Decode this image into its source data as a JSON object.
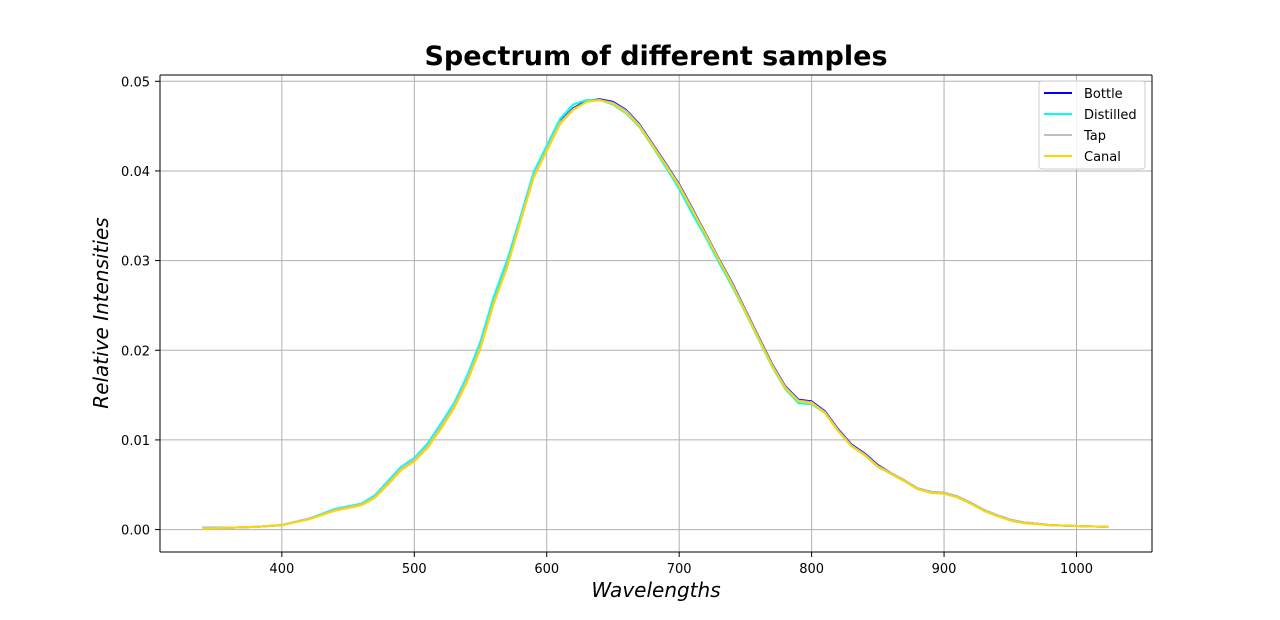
{
  "chart_data": {
    "type": "line",
    "title": "Spectrum of different samples",
    "xlabel": "Wavelengths",
    "ylabel": "Relative Intensities",
    "xlim": [
      308,
      1057
    ],
    "ylim": [
      -0.0025,
      0.0507
    ],
    "xticks": [
      400,
      500,
      600,
      700,
      800,
      900,
      1000
    ],
    "yticks": [
      0.0,
      0.01,
      0.02,
      0.03,
      0.04,
      0.05
    ],
    "ytick_labels": [
      "0.00",
      "0.01",
      "0.02",
      "0.03",
      "0.04",
      "0.05"
    ],
    "grid": true,
    "legend_position": "top-right",
    "x": [
      340,
      360,
      380,
      400,
      420,
      440,
      460,
      470,
      480,
      490,
      500,
      510,
      520,
      530,
      540,
      550,
      560,
      570,
      580,
      590,
      600,
      610,
      620,
      630,
      640,
      650,
      660,
      670,
      680,
      690,
      700,
      710,
      720,
      730,
      740,
      750,
      760,
      770,
      780,
      790,
      800,
      810,
      820,
      830,
      840,
      850,
      860,
      870,
      880,
      890,
      900,
      910,
      920,
      930,
      940,
      950,
      960,
      980,
      1000,
      1024
    ],
    "series": [
      {
        "name": "Bottle",
        "color": "#0000ff",
        "values": [
          0.0002,
          0.0002,
          0.0003,
          0.0005,
          0.0012,
          0.0022,
          0.0028,
          0.0036,
          0.0052,
          0.0068,
          0.0078,
          0.0093,
          0.0115,
          0.0138,
          0.0168,
          0.0205,
          0.0255,
          0.0295,
          0.0345,
          0.0395,
          0.0425,
          0.0455,
          0.047,
          0.0478,
          0.048,
          0.0477,
          0.0468,
          0.0452,
          0.043,
          0.0408,
          0.0385,
          0.0358,
          0.033,
          0.0302,
          0.0275,
          0.0245,
          0.0215,
          0.0185,
          0.016,
          0.0145,
          0.0143,
          0.0132,
          0.0112,
          0.0095,
          0.0085,
          0.0072,
          0.0063,
          0.0055,
          0.0046,
          0.0042,
          0.0041,
          0.0037,
          0.003,
          0.0022,
          0.0016,
          0.0011,
          0.0008,
          0.0005,
          0.0004,
          0.0003
        ]
      },
      {
        "name": "Distilled",
        "color": "#00ffee",
        "values": [
          0.0002,
          0.0002,
          0.0003,
          0.0005,
          0.0012,
          0.0023,
          0.0029,
          0.0038,
          0.0054,
          0.007,
          0.008,
          0.0096,
          0.0118,
          0.0141,
          0.0172,
          0.021,
          0.026,
          0.03,
          0.0348,
          0.0398,
          0.0428,
          0.0458,
          0.0474,
          0.0479,
          0.0479,
          0.0474,
          0.0464,
          0.0449,
          0.0427,
          0.0404,
          0.038,
          0.0352,
          0.0326,
          0.0298,
          0.0271,
          0.0242,
          0.0212,
          0.0182,
          0.0157,
          0.0141,
          0.014,
          0.013,
          0.011,
          0.0093,
          0.0083,
          0.007,
          0.0062,
          0.0054,
          0.0045,
          0.0041,
          0.004,
          0.0036,
          0.0029,
          0.0021,
          0.0015,
          0.0011,
          0.0008,
          0.0005,
          0.0004,
          0.0003
        ]
      },
      {
        "name": "Tap",
        "color": "#bfbfbf",
        "values": [
          0.0002,
          0.0002,
          0.0003,
          0.0005,
          0.0012,
          0.0022,
          0.0028,
          0.0036,
          0.0052,
          0.0068,
          0.0078,
          0.0093,
          0.0115,
          0.0138,
          0.0168,
          0.0205,
          0.0254,
          0.0294,
          0.0344,
          0.0394,
          0.0424,
          0.0454,
          0.0469,
          0.0477,
          0.0479,
          0.0476,
          0.0467,
          0.0451,
          0.0429,
          0.0407,
          0.0384,
          0.0357,
          0.0329,
          0.0301,
          0.0274,
          0.0244,
          0.0214,
          0.0184,
          0.0159,
          0.0144,
          0.0142,
          0.0131,
          0.0111,
          0.0094,
          0.0084,
          0.0071,
          0.0063,
          0.0055,
          0.0046,
          0.0042,
          0.0041,
          0.0037,
          0.003,
          0.0022,
          0.0016,
          0.0011,
          0.0008,
          0.0005,
          0.0004,
          0.0003
        ]
      },
      {
        "name": "Canal",
        "color": "#ffd700",
        "values": [
          0.0001,
          0.0002,
          0.0003,
          0.0005,
          0.0011,
          0.0021,
          0.0027,
          0.0035,
          0.005,
          0.0066,
          0.0076,
          0.0091,
          0.0112,
          0.0135,
          0.0165,
          0.0202,
          0.0252,
          0.0292,
          0.0342,
          0.0392,
          0.0422,
          0.0452,
          0.0468,
          0.0477,
          0.0479,
          0.0475,
          0.0465,
          0.045,
          0.0428,
          0.0406,
          0.0383,
          0.0356,
          0.0329,
          0.0301,
          0.0273,
          0.0243,
          0.0213,
          0.0183,
          0.0158,
          0.0143,
          0.0141,
          0.013,
          0.011,
          0.0093,
          0.0083,
          0.007,
          0.0062,
          0.0054,
          0.0045,
          0.0041,
          0.004,
          0.0036,
          0.0029,
          0.0021,
          0.0015,
          0.001,
          0.0007,
          0.0005,
          0.0004,
          0.0003
        ]
      }
    ]
  }
}
